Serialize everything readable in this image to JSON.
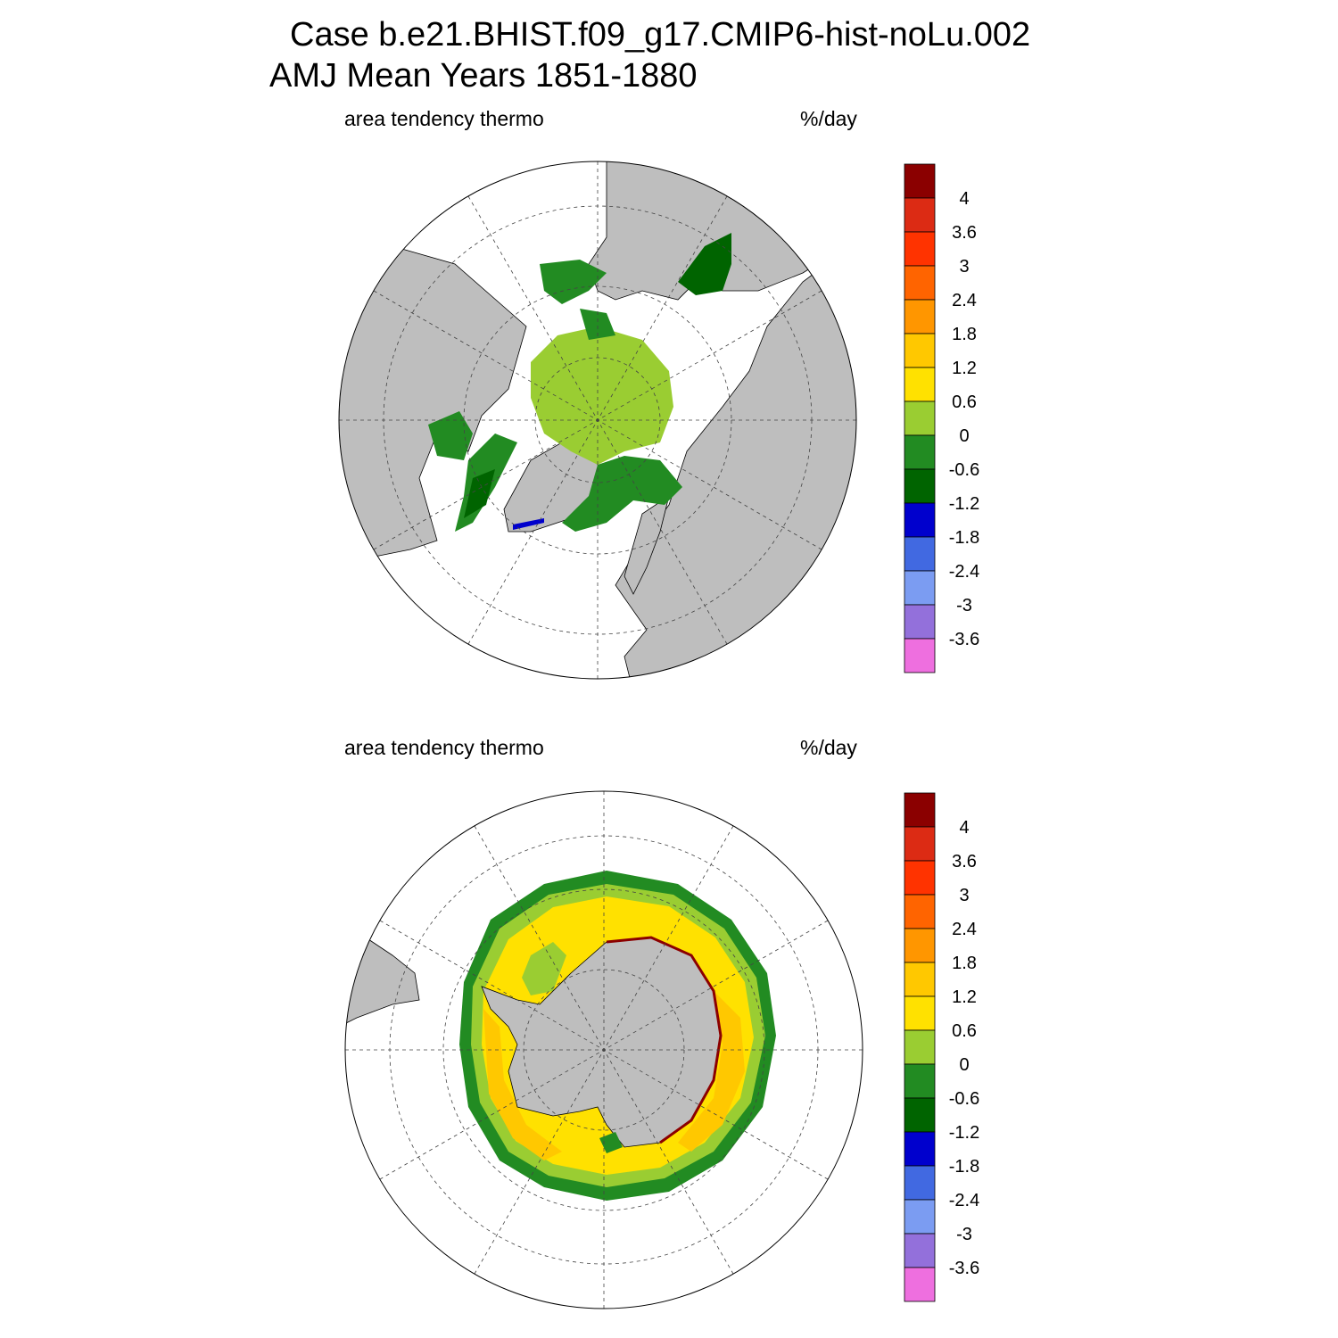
{
  "title": {
    "line1": "Case b.e21.BHIST.f09_g17.CMIP6-hist-noLu.002",
    "line2": "AMJ Mean   Years 1851-1880"
  },
  "colors": {
    "land": "#bebebe",
    "ocean_no_ice": "#ffffff",
    "graticule": "#444444"
  },
  "colorbar": {
    "levels": [
      "4",
      "3.6",
      "3",
      "2.4",
      "1.8",
      "1.2",
      "0.6",
      "0",
      "-0.6",
      "-1.2",
      "-1.8",
      "-2.4",
      "-3",
      "-3.6"
    ],
    "colors": [
      "#8b0000",
      "#dc2b14",
      "#ff3300",
      "#ff6400",
      "#ff9600",
      "#ffc800",
      "#ffe100",
      "#9acd32",
      "#228b22",
      "#006400",
      "#0000cd",
      "#4169e1",
      "#7b9cf2",
      "#9370db",
      "#ee6fdf"
    ]
  },
  "panels": [
    {
      "id": "north",
      "variable": "area tendency thermo",
      "units": "%/day",
      "hemisphere": "Northern Hemisphere polar stereographic"
    },
    {
      "id": "south",
      "variable": "area tendency thermo",
      "units": "%/day",
      "hemisphere": "Southern Hemisphere polar stereographic"
    }
  ]
}
